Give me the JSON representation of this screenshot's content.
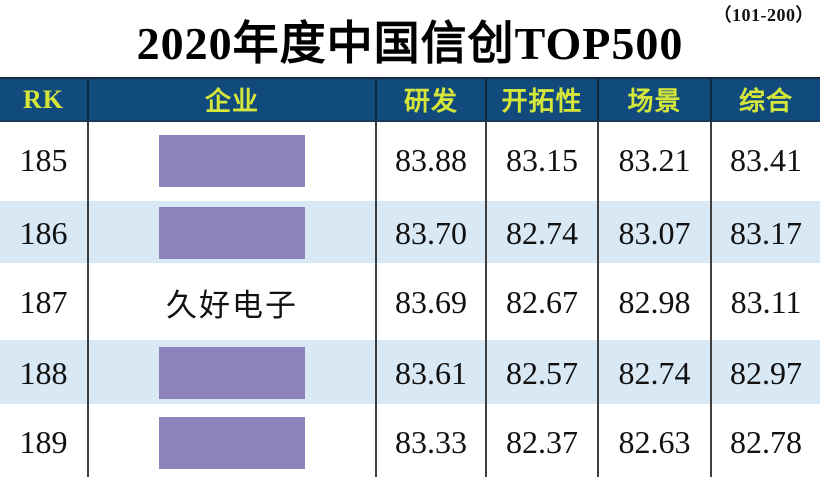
{
  "chart_data": {
    "type": "table",
    "title": "2020年度中国信创TOP500",
    "annotation": "（101-200）",
    "columns": [
      "RK",
      "企业",
      "研发",
      "开拓性",
      "场景",
      "综合"
    ],
    "rows": [
      {
        "rk": "185",
        "company": "",
        "company_redacted": true,
        "scores": [
          "83.88",
          "83.15",
          "83.21",
          "83.41"
        ]
      },
      {
        "rk": "186",
        "company": "",
        "company_redacted": true,
        "scores": [
          "83.70",
          "82.74",
          "83.07",
          "83.17"
        ]
      },
      {
        "rk": "187",
        "company": "久好电子",
        "company_redacted": false,
        "scores": [
          "83.69",
          "82.67",
          "82.98",
          "83.11"
        ]
      },
      {
        "rk": "188",
        "company": "",
        "company_redacted": true,
        "scores": [
          "83.61",
          "82.57",
          "82.74",
          "82.97"
        ]
      },
      {
        "rk": "189",
        "company": "",
        "company_redacted": true,
        "scores": [
          "83.33",
          "82.37",
          "82.63",
          "82.78"
        ]
      }
    ],
    "layout": {
      "row_banding": "alternating white and light blue",
      "grid": "vertical column dividers only"
    }
  },
  "colors": {
    "header_bg": "#114a7c",
    "header_text": "#d5e63b",
    "alt_row_bg": "#d9e8f5",
    "redaction_fill": "#8d82bb",
    "grid_line": "#3f3f3f",
    "body_text": "#111111",
    "title_text": "#000000"
  }
}
